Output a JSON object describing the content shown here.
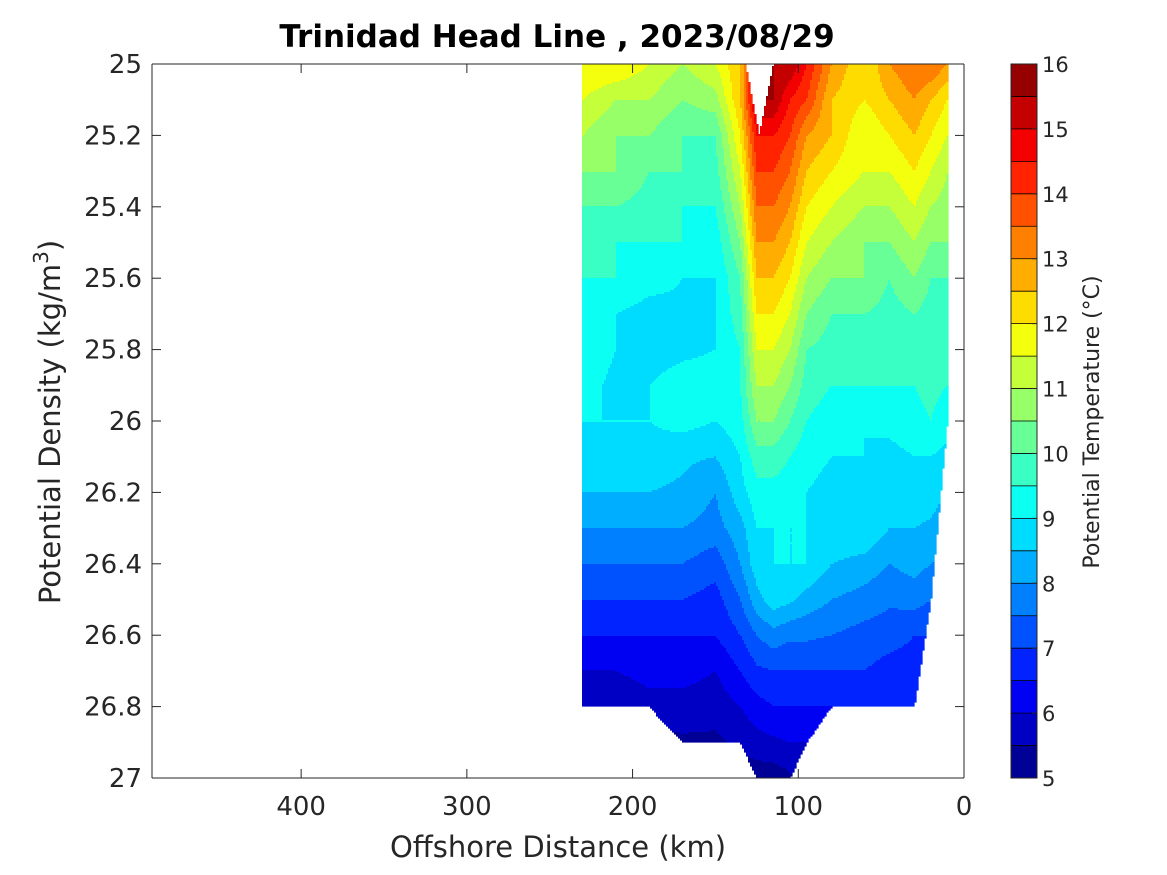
{
  "chart_data": {
    "type": "heatmap",
    "title": "Trinidad Head Line , 2023/08/29",
    "xlabel": "Offshore Distance (km)",
    "ylabel": "Potential Density (kg/m3)",
    "ylabel_parts": {
      "main": "Potential Density (kg/m",
      "sup": "3",
      "end": ")"
    },
    "xlim": [
      490,
      0
    ],
    "x_reversed": true,
    "ylim": [
      25,
      27
    ],
    "y_reversed": true,
    "x_ticks": [
      400,
      300,
      200,
      100,
      0
    ],
    "x_tick_labels": [
      "400",
      "300",
      "200",
      "100",
      "0"
    ],
    "y_ticks": [
      25,
      25.2,
      25.4,
      25.6,
      25.8,
      26,
      26.2,
      26.4,
      26.6,
      26.8,
      27
    ],
    "y_tick_labels": [
      "25",
      "25.2",
      "25.4",
      "25.6",
      "25.8",
      "26",
      "26.2",
      "26.4",
      "26.6",
      "26.8",
      "27"
    ],
    "colorbar": {
      "label": "Potential Temperature (°C)",
      "range": [
        5,
        16
      ],
      "levels": [
        5,
        5.5,
        6,
        6.5,
        7,
        7.5,
        8,
        8.5,
        9,
        9.5,
        10,
        10.5,
        11,
        11.5,
        12,
        12.5,
        13,
        13.5,
        14,
        14.5,
        15,
        15.5,
        16
      ],
      "tick_labels": [
        "5",
        "6",
        "7",
        "8",
        "9",
        "10",
        "11",
        "12",
        "13",
        "14",
        "15",
        "16"
      ],
      "colormap": "jet"
    },
    "grid": false,
    "station_distances_km": [
      230,
      210,
      190,
      170,
      150,
      135,
      125,
      115,
      105,
      95,
      80,
      60,
      45,
      30,
      20,
      10
    ],
    "density_levels": [
      25.0,
      25.1,
      25.2,
      25.3,
      25.4,
      25.5,
      25.6,
      25.7,
      25.8,
      25.9,
      26.0,
      26.1,
      26.2,
      26.3,
      26.4,
      26.5,
      26.6,
      26.7,
      26.8,
      26.9,
      27.0
    ],
    "station_max_density": [
      26.8,
      26.8,
      26.8,
      26.9,
      26.9,
      26.9,
      27.0,
      27.0,
      27.0,
      26.9,
      26.8,
      26.8,
      26.8,
      26.8,
      26.5,
      26.0
    ],
    "temperature": [
      [
        12.0,
        12.0,
        11.5,
        11.0,
        11.5,
        12.5,
        15.5,
        15.5,
        15.5,
        14.5,
        13.0,
        12.0,
        13.0,
        13.5,
        13.5,
        13.0
      ],
      [
        11.5,
        11.0,
        11.0,
        10.5,
        10.8,
        12.5,
        15.5,
        15.5,
        14.5,
        14.0,
        12.5,
        12.0,
        12.5,
        13.0,
        12.5,
        12.0
      ],
      [
        11.0,
        10.5,
        10.5,
        10.0,
        10.0,
        12.0,
        14.5,
        14.5,
        14.0,
        13.0,
        12.5,
        11.5,
        12.0,
        12.5,
        12.0,
        11.5
      ],
      [
        10.5,
        10.5,
        10.0,
        10.0,
        9.8,
        11.5,
        14.0,
        14.0,
        13.5,
        12.5,
        12.0,
        11.5,
        11.5,
        12.0,
        11.5,
        11.0
      ],
      [
        10.0,
        10.0,
        9.8,
        9.5,
        9.5,
        11.0,
        13.5,
        13.5,
        13.0,
        12.0,
        11.5,
        11.0,
        11.0,
        11.5,
        11.0,
        10.8
      ],
      [
        9.8,
        9.5,
        9.5,
        9.5,
        9.2,
        10.5,
        13.0,
        13.0,
        12.5,
        11.5,
        11.0,
        10.5,
        10.5,
        11.0,
        10.5,
        10.5
      ],
      [
        9.5,
        9.5,
        9.2,
        9.0,
        9.0,
        10.0,
        12.5,
        12.5,
        12.0,
        11.0,
        10.5,
        10.5,
        10.0,
        10.5,
        10.0,
        10.0
      ],
      [
        9.5,
        9.0,
        8.8,
        8.9,
        9.0,
        9.8,
        12.0,
        12.0,
        11.5,
        10.5,
        10.0,
        10.0,
        9.8,
        10.0,
        9.8,
        9.8
      ],
      [
        9.5,
        9.0,
        8.8,
        8.9,
        9.0,
        9.5,
        11.5,
        11.5,
        11.0,
        10.0,
        9.8,
        9.5,
        9.5,
        9.5,
        9.8,
        9.5
      ],
      [
        9.3,
        8.8,
        9.0,
        9.2,
        9.2,
        9.5,
        11.0,
        11.0,
        10.5,
        9.8,
        9.5,
        9.5,
        9.5,
        9.5,
        9.6,
        9.5
      ],
      [
        9.0,
        9.0,
        9.0,
        9.2,
        9.0,
        9.3,
        10.5,
        10.5,
        10.0,
        9.5,
        9.2,
        9.0,
        9.2,
        9.4,
        9.5,
        9.3
      ],
      [
        8.8,
        8.8,
        8.8,
        8.6,
        8.5,
        9.0,
        9.8,
        9.8,
        9.5,
        9.2,
        9.0,
        9.0,
        8.8,
        9.0,
        9.0,
        8.8
      ],
      [
        8.5,
        8.5,
        8.5,
        8.4,
        8.0,
        8.8,
        9.3,
        9.3,
        9.2,
        9.0,
        8.8,
        9.0,
        8.5,
        8.8,
        8.8,
        8.5
      ],
      [
        8.0,
        8.0,
        8.0,
        8.0,
        7.8,
        8.3,
        9.0,
        9.0,
        9.0,
        9.0,
        9.0,
        9.0,
        8.5,
        8.5,
        8.4,
        8.0
      ],
      [
        7.5,
        7.5,
        7.5,
        7.5,
        7.2,
        8.0,
        8.8,
        9.0,
        9.0,
        9.0,
        8.5,
        8.3,
        8.0,
        8.2,
        8.0,
        7.8
      ],
      [
        7.0,
        7.0,
        7.0,
        7.0,
        6.8,
        7.5,
        8.3,
        8.8,
        8.6,
        8.3,
        8.0,
        7.8,
        7.6,
        7.7,
        7.5,
        7.3
      ],
      [
        6.5,
        6.5,
        6.5,
        6.5,
        6.5,
        7.0,
        7.5,
        7.8,
        7.6,
        7.6,
        7.5,
        7.3,
        7.2,
        7.0,
        7.0,
        7.0
      ],
      [
        6.0,
        6.0,
        6.2,
        6.2,
        6.0,
        6.5,
        6.9,
        7.0,
        7.0,
        7.0,
        7.0,
        7.0,
        6.8,
        6.8,
        6.8,
        6.8
      ],
      [
        5.5,
        5.5,
        5.8,
        5.8,
        5.7,
        6.0,
        6.3,
        6.5,
        6.5,
        6.5,
        6.5,
        6.5,
        6.5,
        6.5,
        6.5,
        6.5
      ],
      [
        5.3,
        5.3,
        5.3,
        5.4,
        5.4,
        5.6,
        5.8,
        5.9,
        6.0,
        6.0,
        6.2,
        6.2,
        6.2,
        6.2,
        6.2,
        6.2
      ],
      [
        5.2,
        5.2,
        5.2,
        5.2,
        5.2,
        5.2,
        5.2,
        5.2,
        5.4,
        5.8,
        6.0,
        6.0,
        6.0,
        6.0,
        6.0,
        6.0
      ]
    ],
    "missing_region": {
      "x_range_km": [
        115,
        132
      ],
      "density_range": [
        25.0,
        25.2
      ]
    }
  }
}
